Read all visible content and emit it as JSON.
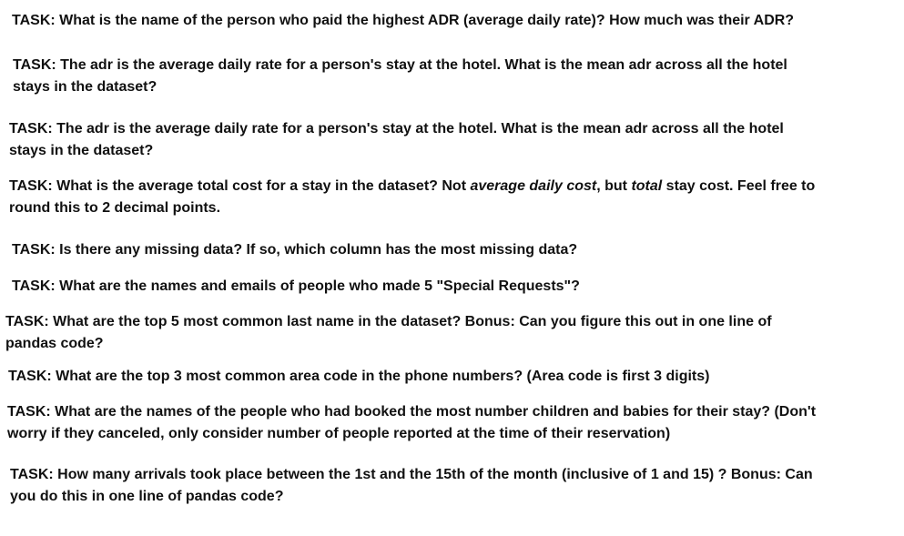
{
  "tasks": [
    {
      "lines": [
        "TASK: What is the name of the person who paid the highest ADR (average daily rate)? How much was their ADR?"
      ]
    },
    {
      "lines": [
        "TASK: The adr is the average daily rate for a person's stay at the hotel. What is the mean adr across all the hotel",
        "stays in the dataset?"
      ]
    },
    {
      "lines": [
        "TASK: The adr is the average daily rate for a person's stay at the hotel. What is the mean adr across all the hotel",
        "stays in the dataset?"
      ]
    },
    {
      "line1_a": "TASK: What is the average total cost for a stay in the dataset? Not ",
      "line1_em1": "average daily cost",
      "line1_b": ", but ",
      "line1_em2": "total",
      "line1_c": " stay cost. Feel free to",
      "line2": "round this to 2 decimal points."
    },
    {
      "lines": [
        "TASK: Is there any missing data? If so, which column has the most missing data?"
      ]
    },
    {
      "lines": [
        "TASK: What are the names and emails of people who made 5 \"Special Requests\"?"
      ]
    },
    {
      "lines": [
        "TASK: What are the top 5 most common last name in the dataset? Bonus: Can you figure this out in one line of",
        "pandas code?"
      ]
    },
    {
      "lines": [
        "TASK: What are the top 3 most common area code in the phone numbers? (Area code is first 3 digits)"
      ]
    },
    {
      "lines": [
        "TASK: What are the names of the people who had booked the most number children and babies for their stay? (Don't",
        "worry if they canceled, only consider number of people reported at the time of their reservation)"
      ]
    },
    {
      "lines": [
        "TASK: How many arrivals took place between the 1st and the 15th of the month (inclusive of 1 and 15) ? Bonus: Can",
        "you do this in one line of pandas code?"
      ]
    }
  ]
}
